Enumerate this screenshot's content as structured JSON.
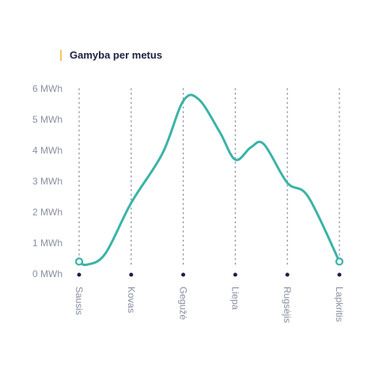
{
  "title": "Gamyba per metus",
  "colors": {
    "accent": "#f0c75e",
    "line": "#3bb3a8",
    "axis_text": "#8a8fa3",
    "title_text": "#1c2140",
    "dot": "#1c2140",
    "gridline": "#8a8fa3"
  },
  "chart_data": {
    "type": "line",
    "title": "Gamyba per metus",
    "x_ticks": [
      "Sausis",
      "Kovas",
      "Gegužė",
      "Liepa",
      "Rugsėjis",
      "Lapkritis"
    ],
    "y_ticks": [
      "0 MWh",
      "1 MWh",
      "2 MWh",
      "3 MWh",
      "4 MWh",
      "5 MWh",
      "6 MWh"
    ],
    "ylim": [
      0,
      6
    ],
    "unit": "MWh",
    "grid": "vertical dotted",
    "series": [
      {
        "x": [
          "Sausis",
          "Kovas",
          "Gegužė",
          "Liepa",
          "Rugsėjis",
          "Lapkritis"
        ],
        "values": [
          0.4,
          2.3,
          5.7,
          3.7,
          2.9,
          0.4
        ],
        "curve_points": [
          [
            0.0,
            0.4
          ],
          [
            0.15,
            0.3
          ],
          [
            0.5,
            0.65
          ],
          [
            1.0,
            2.3
          ],
          [
            1.6,
            3.9
          ],
          [
            2.0,
            5.6
          ],
          [
            2.3,
            5.65
          ],
          [
            2.7,
            4.6
          ],
          [
            3.0,
            3.7
          ],
          [
            3.3,
            4.1
          ],
          [
            3.55,
            4.2
          ],
          [
            4.0,
            2.95
          ],
          [
            4.4,
            2.5
          ],
          [
            5.0,
            0.4
          ]
        ],
        "endpoints_marked": true
      }
    ]
  }
}
